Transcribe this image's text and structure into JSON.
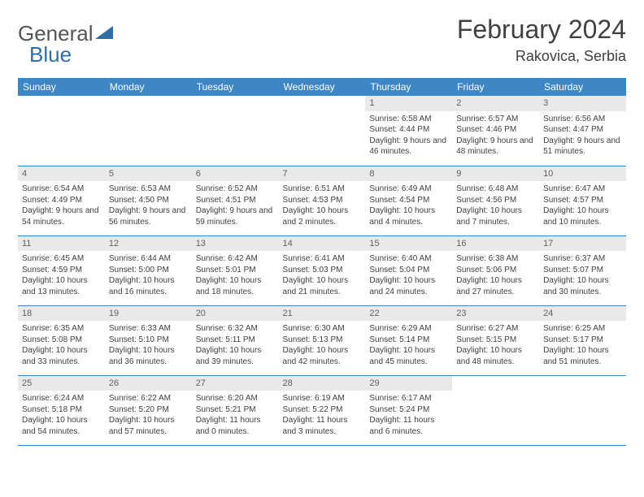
{
  "logo": {
    "text1": "General",
    "text2": "Blue"
  },
  "title": "February 2024",
  "location": "Rakovica, Serbia",
  "colors": {
    "header_bg": "#3d87c7",
    "header_fg": "#ffffff",
    "daynum_bg": "#e9e9e9",
    "daynum_bg_alt": "#f4f4f4",
    "text": "#404040",
    "rule": "#3d87c7",
    "logo_accent": "#2f6fa8"
  },
  "weekdays": [
    "Sunday",
    "Monday",
    "Tuesday",
    "Wednesday",
    "Thursday",
    "Friday",
    "Saturday"
  ],
  "weeks": [
    [
      null,
      null,
      null,
      null,
      {
        "n": "1",
        "sunrise": "6:58 AM",
        "sunset": "4:44 PM",
        "daylight": "9 hours and 46 minutes."
      },
      {
        "n": "2",
        "sunrise": "6:57 AM",
        "sunset": "4:46 PM",
        "daylight": "9 hours and 48 minutes."
      },
      {
        "n": "3",
        "sunrise": "6:56 AM",
        "sunset": "4:47 PM",
        "daylight": "9 hours and 51 minutes."
      }
    ],
    [
      {
        "n": "4",
        "sunrise": "6:54 AM",
        "sunset": "4:49 PM",
        "daylight": "9 hours and 54 minutes."
      },
      {
        "n": "5",
        "sunrise": "6:53 AM",
        "sunset": "4:50 PM",
        "daylight": "9 hours and 56 minutes."
      },
      {
        "n": "6",
        "sunrise": "6:52 AM",
        "sunset": "4:51 PM",
        "daylight": "9 hours and 59 minutes."
      },
      {
        "n": "7",
        "sunrise": "6:51 AM",
        "sunset": "4:53 PM",
        "daylight": "10 hours and 2 minutes."
      },
      {
        "n": "8",
        "sunrise": "6:49 AM",
        "sunset": "4:54 PM",
        "daylight": "10 hours and 4 minutes."
      },
      {
        "n": "9",
        "sunrise": "6:48 AM",
        "sunset": "4:56 PM",
        "daylight": "10 hours and 7 minutes."
      },
      {
        "n": "10",
        "sunrise": "6:47 AM",
        "sunset": "4:57 PM",
        "daylight": "10 hours and 10 minutes."
      }
    ],
    [
      {
        "n": "11",
        "sunrise": "6:45 AM",
        "sunset": "4:59 PM",
        "daylight": "10 hours and 13 minutes."
      },
      {
        "n": "12",
        "sunrise": "6:44 AM",
        "sunset": "5:00 PM",
        "daylight": "10 hours and 16 minutes."
      },
      {
        "n": "13",
        "sunrise": "6:42 AM",
        "sunset": "5:01 PM",
        "daylight": "10 hours and 18 minutes."
      },
      {
        "n": "14",
        "sunrise": "6:41 AM",
        "sunset": "5:03 PM",
        "daylight": "10 hours and 21 minutes."
      },
      {
        "n": "15",
        "sunrise": "6:40 AM",
        "sunset": "5:04 PM",
        "daylight": "10 hours and 24 minutes."
      },
      {
        "n": "16",
        "sunrise": "6:38 AM",
        "sunset": "5:06 PM",
        "daylight": "10 hours and 27 minutes."
      },
      {
        "n": "17",
        "sunrise": "6:37 AM",
        "sunset": "5:07 PM",
        "daylight": "10 hours and 30 minutes."
      }
    ],
    [
      {
        "n": "18",
        "sunrise": "6:35 AM",
        "sunset": "5:08 PM",
        "daylight": "10 hours and 33 minutes."
      },
      {
        "n": "19",
        "sunrise": "6:33 AM",
        "sunset": "5:10 PM",
        "daylight": "10 hours and 36 minutes."
      },
      {
        "n": "20",
        "sunrise": "6:32 AM",
        "sunset": "5:11 PM",
        "daylight": "10 hours and 39 minutes."
      },
      {
        "n": "21",
        "sunrise": "6:30 AM",
        "sunset": "5:13 PM",
        "daylight": "10 hours and 42 minutes."
      },
      {
        "n": "22",
        "sunrise": "6:29 AM",
        "sunset": "5:14 PM",
        "daylight": "10 hours and 45 minutes."
      },
      {
        "n": "23",
        "sunrise": "6:27 AM",
        "sunset": "5:15 PM",
        "daylight": "10 hours and 48 minutes."
      },
      {
        "n": "24",
        "sunrise": "6:25 AM",
        "sunset": "5:17 PM",
        "daylight": "10 hours and 51 minutes."
      }
    ],
    [
      {
        "n": "25",
        "sunrise": "6:24 AM",
        "sunset": "5:18 PM",
        "daylight": "10 hours and 54 minutes."
      },
      {
        "n": "26",
        "sunrise": "6:22 AM",
        "sunset": "5:20 PM",
        "daylight": "10 hours and 57 minutes."
      },
      {
        "n": "27",
        "sunrise": "6:20 AM",
        "sunset": "5:21 PM",
        "daylight": "11 hours and 0 minutes."
      },
      {
        "n": "28",
        "sunrise": "6:19 AM",
        "sunset": "5:22 PM",
        "daylight": "11 hours and 3 minutes."
      },
      {
        "n": "29",
        "sunrise": "6:17 AM",
        "sunset": "5:24 PM",
        "daylight": "11 hours and 6 minutes."
      },
      null,
      null
    ]
  ],
  "labels": {
    "sunrise": "Sunrise:",
    "sunset": "Sunset:",
    "daylight": "Daylight:"
  }
}
